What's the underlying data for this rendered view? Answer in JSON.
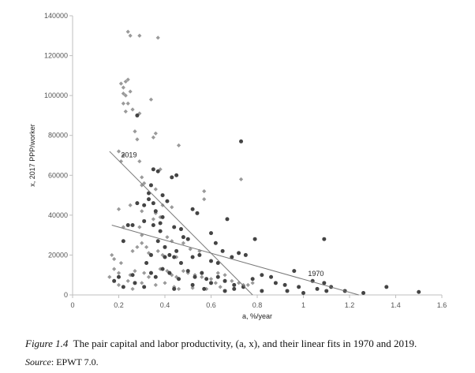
{
  "chart_data": {
    "type": "scatter",
    "xlabel": "a, %/year",
    "ylabel": "x, 2017 PPP/worker",
    "xlim": [
      0,
      1.6
    ],
    "ylim": [
      0,
      140000
    ],
    "xticks": [
      0,
      0.2,
      0.4,
      0.6,
      0.8,
      1,
      1.2,
      1.4,
      1.6
    ],
    "xtick_labels": [
      "0",
      "0.2",
      "0.4",
      "0.6",
      "0.8",
      "1",
      "1.2",
      "1.4",
      "1.6"
    ],
    "yticks": [
      0,
      20000,
      40000,
      60000,
      80000,
      100000,
      120000,
      140000
    ],
    "ytick_labels": [
      "0",
      "20000",
      "40000",
      "60000",
      "80000",
      "100000",
      "120000",
      "140000"
    ],
    "grid": false,
    "legend": "none",
    "series": [
      {
        "marker": "diamond",
        "color": "#9a9a9a",
        "points": [
          [
            0.24,
            132000
          ],
          [
            0.25,
            130000
          ],
          [
            0.29,
            130000
          ],
          [
            0.37,
            129000
          ],
          [
            0.21,
            106000
          ],
          [
            0.22,
            104000
          ],
          [
            0.23,
            107000
          ],
          [
            0.24,
            108000
          ],
          [
            0.22,
            101000
          ],
          [
            0.23,
            100000
          ],
          [
            0.25,
            102000
          ],
          [
            0.24,
            96000
          ],
          [
            0.22,
            96000
          ],
          [
            0.23,
            92000
          ],
          [
            0.26,
            93000
          ],
          [
            0.29,
            91000
          ],
          [
            0.34,
            98000
          ],
          [
            0.27,
            82000
          ],
          [
            0.36,
            81000
          ],
          [
            0.35,
            79000
          ],
          [
            0.28,
            78000
          ],
          [
            0.46,
            75000
          ],
          [
            0.2,
            72000
          ],
          [
            0.22,
            70000
          ],
          [
            0.21,
            67000
          ],
          [
            0.29,
            67000
          ],
          [
            0.38,
            63000
          ],
          [
            0.73,
            58000
          ],
          [
            0.3,
            59000
          ],
          [
            0.31,
            56000
          ],
          [
            0.3,
            55000
          ],
          [
            0.36,
            53000
          ],
          [
            0.57,
            52000
          ],
          [
            0.57,
            48000
          ],
          [
            0.39,
            45000
          ],
          [
            0.43,
            44000
          ],
          [
            0.3,
            42000
          ],
          [
            0.36,
            41000
          ],
          [
            0.38,
            39000
          ],
          [
            0.35,
            38000
          ],
          [
            0.2,
            43000
          ],
          [
            0.25,
            45000
          ],
          [
            0.29,
            34000
          ],
          [
            0.22,
            34000
          ],
          [
            0.3,
            30000
          ],
          [
            0.41,
            29000
          ],
          [
            0.43,
            27000
          ],
          [
            0.48,
            26000
          ],
          [
            0.51,
            23000
          ],
          [
            0.55,
            22000
          ],
          [
            0.3,
            26000
          ],
          [
            0.32,
            24000
          ],
          [
            0.37,
            22000
          ],
          [
            0.33,
            21000
          ],
          [
            0.39,
            20000
          ],
          [
            0.45,
            19000
          ],
          [
            0.17,
            20000
          ],
          [
            0.18,
            18000
          ],
          [
            0.21,
            16000
          ],
          [
            0.26,
            22000
          ],
          [
            0.28,
            24000
          ],
          [
            0.18,
            13000
          ],
          [
            0.2,
            11000
          ],
          [
            0.25,
            10000
          ],
          [
            0.27,
            12000
          ],
          [
            0.31,
            11000
          ],
          [
            0.33,
            9000
          ],
          [
            0.38,
            13000
          ],
          [
            0.41,
            12000
          ],
          [
            0.43,
            10000
          ],
          [
            0.45,
            9000
          ],
          [
            0.48,
            12000
          ],
          [
            0.5,
            11000
          ],
          [
            0.53,
            10000
          ],
          [
            0.56,
            9000
          ],
          [
            0.6,
            8000
          ],
          [
            0.63,
            11000
          ],
          [
            0.66,
            10000
          ],
          [
            0.69,
            7000
          ],
          [
            0.72,
            6000
          ],
          [
            0.74,
            5000
          ],
          [
            0.24,
            7000
          ],
          [
            0.3,
            6000
          ],
          [
            0.36,
            5000
          ],
          [
            0.44,
            4000
          ],
          [
            0.52,
            3500
          ],
          [
            0.58,
            3000
          ],
          [
            0.64,
            4000
          ],
          [
            0.76,
            5000
          ],
          [
            0.78,
            6000
          ],
          [
            0.16,
            9000
          ],
          [
            0.2,
            5000
          ],
          [
            0.26,
            3000
          ],
          [
            0.4,
            6000
          ],
          [
            0.46,
            3000
          ],
          [
            0.62,
            6000
          ]
        ]
      },
      {
        "marker": "circle",
        "color": "#444444",
        "points": [
          [
            0.73,
            77000
          ],
          [
            0.28,
            90000
          ],
          [
            0.35,
            63000
          ],
          [
            0.37,
            62000
          ],
          [
            0.43,
            59000
          ],
          [
            0.34,
            55000
          ],
          [
            0.45,
            60000
          ],
          [
            0.33,
            51000
          ],
          [
            0.39,
            50000
          ],
          [
            0.41,
            47000
          ],
          [
            0.33,
            48000
          ],
          [
            0.35,
            46000
          ],
          [
            0.31,
            45000
          ],
          [
            0.36,
            42000
          ],
          [
            0.39,
            39000
          ],
          [
            0.28,
            46000
          ],
          [
            0.38,
            36000
          ],
          [
            0.44,
            34000
          ],
          [
            0.47,
            33000
          ],
          [
            0.52,
            43000
          ],
          [
            0.54,
            41000
          ],
          [
            0.48,
            29000
          ],
          [
            0.5,
            28000
          ],
          [
            0.67,
            38000
          ],
          [
            0.6,
            31000
          ],
          [
            0.31,
            37000
          ],
          [
            0.35,
            35000
          ],
          [
            0.38,
            32000
          ],
          [
            0.24,
            35000
          ],
          [
            0.26,
            35000
          ],
          [
            0.22,
            27000
          ],
          [
            0.37,
            27000
          ],
          [
            0.4,
            24000
          ],
          [
            0.42,
            20000
          ],
          [
            0.44,
            19000
          ],
          [
            0.47,
            16000
          ],
          [
            0.52,
            19000
          ],
          [
            0.55,
            20000
          ],
          [
            0.6,
            17000
          ],
          [
            0.63,
            16000
          ],
          [
            0.65,
            22000
          ],
          [
            0.69,
            19000
          ],
          [
            0.72,
            21000
          ],
          [
            0.75,
            20000
          ],
          [
            0.79,
            28000
          ],
          [
            1.09,
            28000
          ],
          [
            0.62,
            26000
          ],
          [
            0.34,
            20000
          ],
          [
            0.4,
            19000
          ],
          [
            0.45,
            22000
          ],
          [
            0.32,
            16000
          ],
          [
            0.34,
            11000
          ],
          [
            0.36,
            9000
          ],
          [
            0.39,
            13000
          ],
          [
            0.42,
            11000
          ],
          [
            0.46,
            8000
          ],
          [
            0.5,
            12000
          ],
          [
            0.53,
            9000
          ],
          [
            0.56,
            11000
          ],
          [
            0.58,
            8000
          ],
          [
            0.6,
            6000
          ],
          [
            0.63,
            9000
          ],
          [
            0.66,
            7000
          ],
          [
            0.7,
            5000
          ],
          [
            0.74,
            4000
          ],
          [
            0.78,
            8000
          ],
          [
            0.82,
            10000
          ],
          [
            0.86,
            9000
          ],
          [
            0.88,
            6000
          ],
          [
            0.92,
            5000
          ],
          [
            0.96,
            12000
          ],
          [
            0.98,
            4000
          ],
          [
            1.04,
            7000
          ],
          [
            1.06,
            3000
          ],
          [
            1.09,
            6000
          ],
          [
            1.12,
            4000
          ],
          [
            1.18,
            2000
          ],
          [
            1.26,
            1000
          ],
          [
            1.36,
            4000
          ],
          [
            1.5,
            1500
          ],
          [
            0.18,
            7000
          ],
          [
            0.22,
            4000
          ],
          [
            0.27,
            6000
          ],
          [
            0.31,
            4000
          ],
          [
            0.44,
            3000
          ],
          [
            0.52,
            5000
          ],
          [
            0.57,
            3000
          ],
          [
            0.66,
            2000
          ],
          [
            0.7,
            3000
          ],
          [
            0.82,
            2000
          ],
          [
            0.93,
            2000
          ],
          [
            1.0,
            1000
          ],
          [
            1.1,
            2000
          ],
          [
            0.26,
            10000
          ],
          [
            0.2,
            9000
          ]
        ]
      }
    ],
    "fit_lines": [
      {
        "label": "2019",
        "color": "#777777",
        "x": [
          0.16,
          0.78
        ],
        "y": [
          72000,
          0
        ]
      },
      {
        "label": "1970",
        "color": "#777777",
        "x": [
          0.17,
          1.24
        ],
        "y": [
          35000,
          0
        ]
      }
    ],
    "annotations": [
      {
        "text": "2019",
        "x": 0.21,
        "y": 69000
      },
      {
        "text": "1970",
        "x": 1.02,
        "y": 9500
      }
    ]
  },
  "caption": {
    "figure_label": "Figure 1.4",
    "text": "The pair capital and labor productivity, (a, x), and their linear fits in 1970 and 2019."
  },
  "source": {
    "label": "Source",
    "text": ": EPWT 7.0."
  }
}
